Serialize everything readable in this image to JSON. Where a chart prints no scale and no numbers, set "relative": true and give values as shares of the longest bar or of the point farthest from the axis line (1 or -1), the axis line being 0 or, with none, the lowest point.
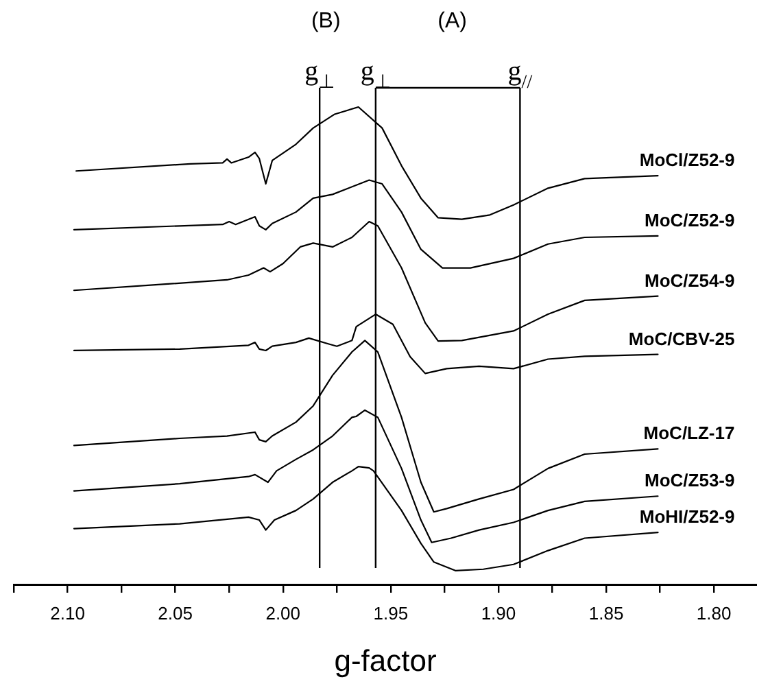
{
  "chart_data": {
    "type": "line",
    "relative": true,
    "xlabel": "g-factor",
    "xlim": [
      2.125,
      1.78
    ],
    "xticks": [
      {
        "value": 2.125,
        "label": null
      },
      {
        "value": 2.1,
        "label": "2.10"
      },
      {
        "value": 2.075,
        "label": null
      },
      {
        "value": 2.05,
        "label": "2.05"
      },
      {
        "value": 2.025,
        "label": null
      },
      {
        "value": 2,
        "label": "2.00"
      },
      {
        "value": 1.975,
        "label": null
      },
      {
        "value": 1.95,
        "label": "1.95"
      },
      {
        "value": 1.925,
        "label": null
      },
      {
        "value": 1.9,
        "label": "1.90"
      },
      {
        "value": 1.875,
        "label": null
      },
      {
        "value": 1.85,
        "label": "1.85"
      },
      {
        "value": 1.825,
        "label": null
      },
      {
        "value": 1.8,
        "label": "1.80"
      }
    ],
    "grid": false,
    "legend": false,
    "marker": "none",
    "line_style": "solid",
    "ref_lines": [
      {
        "axis": "x",
        "value": 1.983,
        "label": "g$_{⊥}$"
      },
      {
        "axis": "x",
        "value": 1.957,
        "label": "g$_{⊥}$"
      },
      {
        "axis": "x",
        "value": 1.89,
        "label": "g$_{//}$"
      }
    ],
    "annotations": [
      "(B)",
      "(A)"
    ],
    "series": [
      {
        "name": "MoCl/Z52-9",
        "color": "#000000",
        "x": [
          2.096,
          2.043,
          2.028,
          2.026,
          2.024,
          2.016,
          2.013,
          2.011,
          2.008,
          2.005,
          1.994,
          1.986,
          1.976,
          1.965,
          1.954,
          1.945,
          1.936,
          1.928,
          1.917,
          1.904,
          1.893,
          1.877,
          1.86,
          1.826
        ],
        "values": [
          0.866,
          0.881,
          0.883,
          0.891,
          0.883,
          0.895,
          0.905,
          0.892,
          0.839,
          0.888,
          0.922,
          0.956,
          0.985,
          1,
          0.956,
          0.877,
          0.809,
          0.768,
          0.765,
          0.774,
          0.795,
          0.83,
          0.85,
          0.856
        ]
      },
      {
        "name": "MoC/Z52-9",
        "color": "#000000",
        "x": [
          2.097,
          2.048,
          2.028,
          2.025,
          2.022,
          2.013,
          2.011,
          2.008,
          2.005,
          1.994,
          1.986,
          1.977,
          1.96,
          1.954,
          1.945,
          1.936,
          1.926,
          1.913,
          1.893,
          1.877,
          1.86,
          1.826
        ],
        "values": [
          0.743,
          0.751,
          0.754,
          0.76,
          0.754,
          0.77,
          0.751,
          0.743,
          0.756,
          0.78,
          0.809,
          0.817,
          0.847,
          0.839,
          0.78,
          0.702,
          0.663,
          0.663,
          0.683,
          0.713,
          0.727,
          0.73
        ]
      },
      {
        "name": "MoC/Z54-9",
        "color": "#000000",
        "x": [
          2.097,
          2.058,
          2.026,
          2.016,
          2.009,
          2.006,
          2.0,
          1.992,
          1.986,
          1.977,
          1.968,
          1.96,
          1.956,
          1.945,
          1.934,
          1.928,
          1.917,
          1.893,
          1.877,
          1.86,
          1.826
        ],
        "values": [
          0.616,
          0.628,
          0.638,
          0.648,
          0.663,
          0.655,
          0.672,
          0.707,
          0.715,
          0.707,
          0.727,
          0.76,
          0.751,
          0.663,
          0.548,
          0.51,
          0.511,
          0.531,
          0.566,
          0.595,
          0.604
        ]
      },
      {
        "name": "MoC/CBV-25",
        "color": "#000000",
        "x": [
          2.097,
          2.048,
          2.016,
          2.013,
          2.011,
          2.008,
          2.005,
          1.994,
          1.988,
          1.979,
          1.975,
          1.968,
          1.966,
          1.957,
          1.949,
          1.941,
          1.934,
          1.924,
          1.909,
          1.893,
          1.877,
          1.86,
          1.826
        ],
        "values": [
          0.49,
          0.493,
          0.501,
          0.507,
          0.493,
          0.49,
          0.499,
          0.507,
          0.516,
          0.504,
          0.499,
          0.511,
          0.54,
          0.566,
          0.545,
          0.477,
          0.442,
          0.452,
          0.457,
          0.452,
          0.472,
          0.478,
          0.482
        ]
      },
      {
        "name": "MoC/LZ-17",
        "color": "#000000",
        "x": [
          2.097,
          2.048,
          2.026,
          2.013,
          2.011,
          2.008,
          2.005,
          1.994,
          1.986,
          1.977,
          1.968,
          1.962,
          1.956,
          1.945,
          1.936,
          1.93,
          1.924,
          1.909,
          1.893,
          1.877,
          1.86,
          1.826
        ],
        "values": [
          0.291,
          0.306,
          0.311,
          0.319,
          0.303,
          0.299,
          0.311,
          0.34,
          0.374,
          0.438,
          0.487,
          0.511,
          0.487,
          0.35,
          0.214,
          0.152,
          0.159,
          0.179,
          0.199,
          0.243,
          0.273,
          0.284
        ]
      },
      {
        "name": "MoC/Z53-9",
        "color": "#000000",
        "x": [
          2.097,
          2.048,
          2.016,
          2.013,
          2.007,
          2.003,
          1.994,
          1.986,
          1.977,
          1.968,
          1.966,
          1.962,
          1.956,
          1.945,
          1.936,
          1.931,
          1.922,
          1.909,
          1.893,
          1.877,
          1.86,
          1.826
        ],
        "values": [
          0.196,
          0.211,
          0.226,
          0.23,
          0.214,
          0.238,
          0.262,
          0.282,
          0.311,
          0.35,
          0.352,
          0.365,
          0.35,
          0.243,
          0.135,
          0.088,
          0.097,
          0.114,
          0.13,
          0.155,
          0.174,
          0.185
        ]
      },
      {
        "name": "MoHI/Z52-9",
        "color": "#000000",
        "x": [
          2.097,
          2.048,
          2.016,
          2.011,
          2.008,
          2.004,
          1.994,
          1.986,
          1.977,
          1.968,
          1.965,
          1.96,
          1.958,
          1.945,
          1.936,
          1.93,
          1.92,
          1.907,
          1.893,
          1.877,
          1.86,
          1.826
        ],
        "values": [
          0.117,
          0.127,
          0.141,
          0.135,
          0.114,
          0.135,
          0.155,
          0.179,
          0.214,
          0.238,
          0.247,
          0.244,
          0.238,
          0.155,
          0.086,
          0.047,
          0.029,
          0.032,
          0.042,
          0.071,
          0.097,
          0.109
        ]
      }
    ]
  }
}
